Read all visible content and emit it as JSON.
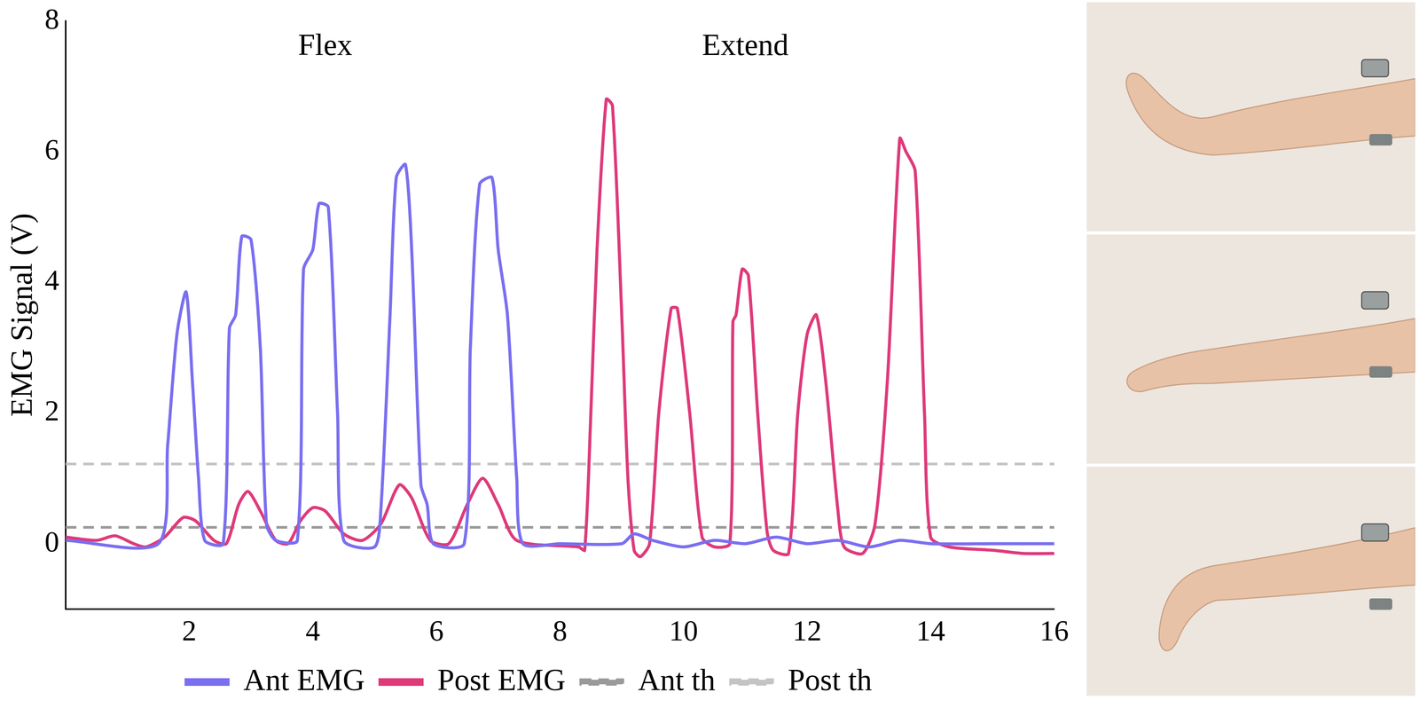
{
  "chart_data": {
    "type": "line",
    "y_label": "EMG Signal (V)",
    "annotations": [
      {
        "text": "Flex",
        "x": 4.2,
        "y": 7.6
      },
      {
        "text": "Extend",
        "x": 11.0,
        "y": 7.6
      }
    ],
    "xlim": [
      0,
      16
    ],
    "xticks": [
      2,
      4,
      6,
      8,
      10,
      12,
      14,
      16
    ],
    "ylim": [
      -1,
      8
    ],
    "yticks": [
      0,
      2,
      4,
      6,
      8
    ],
    "grid": false,
    "legend": "bottom",
    "series": [
      {
        "name": "Ant EMG",
        "color": "#7a6ff0",
        "line_style": "solid",
        "x": [
          0,
          1.5,
          1.65,
          1.8,
          1.95,
          2.05,
          2.15,
          2.25,
          2.55,
          2.65,
          2.75,
          2.85,
          3.0,
          3.15,
          3.25,
          3.4,
          3.75,
          3.85,
          4.0,
          4.1,
          4.25,
          4.4,
          4.5,
          5.0,
          5.1,
          5.25,
          5.35,
          5.5,
          5.6,
          5.75,
          5.85,
          5.95,
          6.45,
          6.55,
          6.7,
          6.9,
          7.0,
          7.15,
          7.3,
          7.4,
          8,
          9,
          9.2,
          9.5,
          10,
          10.5,
          11,
          11.5,
          12,
          12.5,
          13,
          13.5,
          14,
          15,
          16
        ],
        "values": [
          0.05,
          0.0,
          1.5,
          3.2,
          3.85,
          2.5,
          1.0,
          0.05,
          0.0,
          3.3,
          3.5,
          4.7,
          4.65,
          3.0,
          0.3,
          0.05,
          0.05,
          4.2,
          4.5,
          5.2,
          5.15,
          2.0,
          0.05,
          -0.05,
          0.5,
          3.5,
          5.6,
          5.8,
          4.5,
          0.9,
          0.6,
          0.0,
          0.0,
          3.0,
          5.5,
          5.6,
          4.5,
          3.5,
          1.0,
          0.0,
          0.0,
          0.0,
          0.15,
          0.05,
          -0.05,
          0.05,
          0.0,
          0.1,
          0.0,
          0.05,
          -0.05,
          0.05,
          0.0,
          0.0,
          0.0
        ]
      },
      {
        "name": "Post EMG",
        "color": "#de3a7a",
        "line_style": "solid",
        "x": [
          0,
          0.5,
          0.8,
          1.1,
          1.3,
          1.6,
          1.9,
          2.1,
          2.4,
          2.6,
          2.8,
          2.95,
          3.15,
          3.4,
          3.6,
          3.8,
          4.0,
          4.2,
          4.5,
          4.8,
          5.1,
          5.4,
          5.6,
          5.9,
          6.2,
          6.5,
          6.75,
          7.0,
          7.3,
          8.3,
          8.4,
          8.5,
          8.6,
          8.75,
          8.85,
          9.0,
          9.1,
          9.2,
          9.3,
          9.45,
          9.6,
          9.8,
          9.9,
          10.1,
          10.3,
          10.5,
          10.75,
          10.8,
          10.85,
          10.95,
          11.05,
          11.2,
          11.35,
          11.45,
          11.7,
          11.85,
          12.0,
          12.15,
          12.3,
          12.5,
          12.6,
          12.9,
          13.1,
          13.3,
          13.5,
          13.6,
          13.75,
          13.9,
          14.0,
          14.3,
          15,
          15.5,
          16
        ],
        "values": [
          0.1,
          0.05,
          0.12,
          0.0,
          -0.05,
          0.1,
          0.4,
          0.35,
          0.05,
          0.0,
          0.6,
          0.8,
          0.5,
          0.05,
          0.0,
          0.35,
          0.55,
          0.5,
          0.15,
          0.05,
          0.3,
          0.9,
          0.7,
          0.05,
          0.0,
          0.6,
          1.0,
          0.6,
          0.05,
          -0.05,
          -0.1,
          2.0,
          4.5,
          6.8,
          6.7,
          3.5,
          1.0,
          -0.1,
          -0.2,
          0.0,
          2.0,
          3.6,
          3.6,
          2.0,
          0.1,
          -0.05,
          0.0,
          3.4,
          3.5,
          4.2,
          4.1,
          2.0,
          0.2,
          -0.1,
          -0.15,
          2.0,
          3.2,
          3.5,
          2.5,
          0.5,
          -0.05,
          -0.15,
          0.3,
          2.5,
          6.2,
          6.0,
          5.7,
          2.0,
          0.1,
          -0.05,
          -0.1,
          -0.15,
          -0.15
        ]
      },
      {
        "name": "Ant th",
        "color": "#9a9a9a",
        "line_style": "dashed",
        "x": [
          0,
          16
        ],
        "values": [
          0.25,
          0.25
        ]
      },
      {
        "name": "Post th",
        "color": "#c4c4c4",
        "line_style": "dashed",
        "x": [
          0,
          16
        ],
        "values": [
          1.22,
          1.22
        ]
      }
    ]
  }
}
